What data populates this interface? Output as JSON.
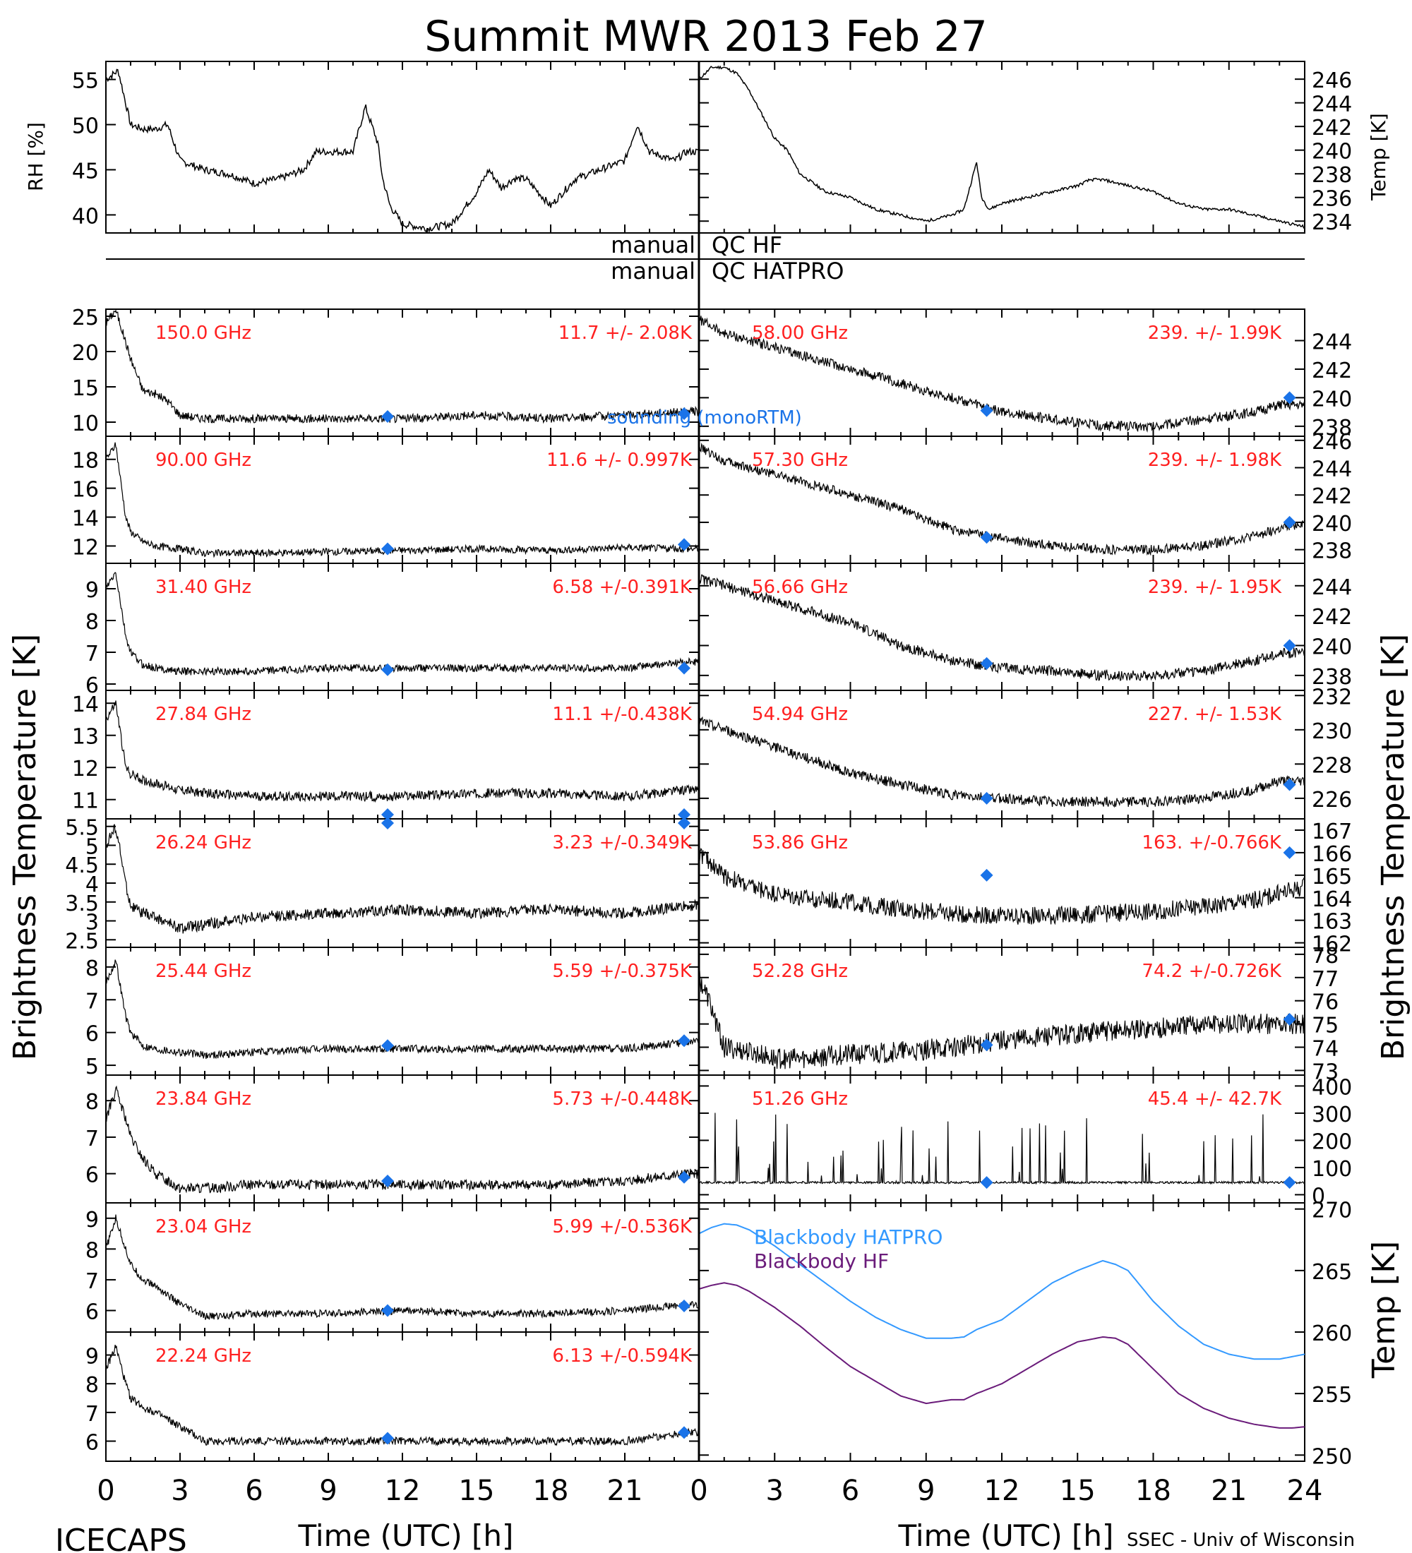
{
  "title": "Summit MWR 2013 Feb 27",
  "footer": {
    "left": "ICECAPS",
    "right": "SSEC - Univ of Wisconsin"
  },
  "labels": {
    "rh": "RH [%]",
    "temp": "Temp [K]",
    "brightness": "Brightness Temperature [K]",
    "qc_manual_1": "manual",
    "qc_hf": "QC HF",
    "qc_manual_2": "manual",
    "qc_hatpro": "QC HATPRO",
    "sounding": "sounding (monoRTM)",
    "time_axis": "Time (UTC) [h]"
  },
  "colors": {
    "trace": "#000000",
    "channel_text": "#ff2020",
    "sounding": "#1a73e8",
    "bb_hatpro": "#3399ff",
    "bb_hf": "#6a1b7a"
  },
  "chart_data": [
    {
      "type": "line",
      "id": "rh",
      "ylabel": "RH [%]",
      "ylim": [
        38,
        57
      ],
      "xlim": [
        0,
        24
      ],
      "yticks": [
        40,
        45,
        50,
        55
      ],
      "xticks": [
        0,
        3,
        6,
        9,
        12,
        15,
        18,
        21
      ],
      "series": [
        {
          "x": [
            0,
            0.5,
            1,
            1.5,
            2,
            2.5,
            3,
            3.5,
            4,
            5,
            6,
            7,
            8,
            8.5,
            9,
            10,
            10.5,
            11,
            11.2,
            11.5,
            12,
            13,
            14,
            15,
            15.5,
            16,
            16.5,
            17,
            18,
            19,
            20,
            21,
            21.5,
            22,
            23,
            23.5
          ],
          "y": [
            55,
            56,
            50,
            49.5,
            49.5,
            50,
            46,
            45.5,
            45,
            44.5,
            43.5,
            44,
            45,
            47,
            47,
            47,
            52,
            48,
            44,
            41,
            39,
            38.5,
            39,
            42.5,
            45,
            43,
            44,
            44,
            41,
            44,
            45,
            46,
            50,
            47,
            46,
            47
          ]
        }
      ]
    },
    {
      "type": "line",
      "id": "air_temp",
      "ylabel": "Temp [K]",
      "ylim": [
        233,
        247.5
      ],
      "xlim": [
        0,
        24
      ],
      "yticks": [
        234,
        236,
        238,
        240,
        242,
        244,
        246
      ],
      "series": [
        {
          "x": [
            0,
            0.5,
            1,
            1.5,
            2,
            2.5,
            3,
            3.5,
            4,
            5,
            6,
            7,
            8,
            9,
            10,
            10.5,
            11,
            11.2,
            11.5,
            12,
            13,
            14,
            15,
            15.5,
            16,
            17,
            18,
            19,
            20,
            21,
            22,
            23,
            24
          ],
          "y": [
            246,
            247,
            247,
            246.5,
            245,
            243,
            241,
            240,
            238,
            236.5,
            236,
            235,
            234.5,
            234,
            234.5,
            235,
            239,
            236,
            235,
            235.5,
            236,
            236.5,
            237,
            237.5,
            237.5,
            237,
            236.5,
            235.5,
            235,
            235,
            234.5,
            234,
            233.5
          ]
        }
      ]
    },
    {
      "type": "scatter",
      "id": "ch150",
      "label": "150.0 GHz",
      "stats": "11.7 +/-  2.08K",
      "side": "left",
      "ylim": [
        8,
        26
      ],
      "yticks": [
        10,
        15,
        20,
        25
      ],
      "x": [
        0,
        0.4,
        1,
        1.5,
        2,
        2.5,
        3,
        4,
        6,
        9,
        12,
        15,
        18,
        21,
        23.5,
        24
      ],
      "y": [
        24,
        26,
        19,
        14.5,
        14,
        13,
        11,
        10.5,
        10.5,
        10.5,
        10.5,
        11,
        10.5,
        11,
        11.5,
        11.5
      ],
      "noise": 0.6,
      "sounding": [
        {
          "x": 11.4,
          "y": 10.8
        },
        {
          "x": 23.4,
          "y": 11.2
        }
      ]
    },
    {
      "type": "scatter",
      "id": "ch58",
      "label": "58.00 GHz",
      "stats": "239. +/- 1.99K",
      "side": "right",
      "ylim": [
        237.3,
        246.2
      ],
      "yticks": [
        238,
        240,
        242,
        244
      ],
      "x": [
        0,
        1,
        2,
        3,
        4,
        6,
        8,
        10,
        12,
        14,
        16,
        18,
        20,
        22,
        23,
        24
      ],
      "y": [
        245.5,
        244.5,
        244,
        243.5,
        243,
        242,
        241,
        240,
        239,
        238.5,
        238,
        238,
        238.5,
        239,
        239.5,
        239.5
      ],
      "noise": 0.35,
      "sounding": [
        {
          "x": 11.4,
          "y": 239.1
        },
        {
          "x": 23.4,
          "y": 240.0
        }
      ]
    },
    {
      "type": "scatter",
      "id": "ch90",
      "label": "90.00 GHz",
      "stats": "11.6 +/- 0.997K",
      "side": "left",
      "ylim": [
        10.8,
        19.6
      ],
      "yticks": [
        12,
        14,
        16,
        18
      ],
      "x": [
        0,
        0.4,
        0.8,
        1,
        1.5,
        2,
        3,
        4,
        6,
        9,
        12,
        15,
        18,
        21,
        23.5,
        24
      ],
      "y": [
        18,
        19,
        14,
        13,
        12.3,
        12,
        11.8,
        11.5,
        11.5,
        11.6,
        11.7,
        11.8,
        11.7,
        11.9,
        11.8,
        11.8
      ],
      "noise": 0.25,
      "sounding": [
        {
          "x": 11.4,
          "y": 11.8
        },
        {
          "x": 23.4,
          "y": 12.1
        }
      ]
    },
    {
      "type": "scatter",
      "id": "ch57_3",
      "label": "57.30 GHz",
      "stats": "239. +/- 1.98K",
      "side": "right",
      "ylim": [
        237,
        246.3
      ],
      "yticks": [
        238,
        240,
        242,
        244,
        246
      ],
      "x": [
        0,
        1,
        2,
        3,
        4,
        6,
        8,
        10,
        12,
        14,
        16,
        18,
        20,
        22,
        23,
        24
      ],
      "y": [
        245.5,
        244.5,
        244,
        243.5,
        243,
        242,
        241,
        239.5,
        238.8,
        238.3,
        238,
        238,
        238.3,
        239,
        239.5,
        240
      ],
      "noise": 0.35,
      "sounding": [
        {
          "x": 11.4,
          "y": 238.9
        },
        {
          "x": 23.4,
          "y": 240.0
        }
      ]
    },
    {
      "type": "scatter",
      "id": "ch31",
      "label": "31.40 GHz",
      "stats": "6.58 +/-0.391K",
      "side": "left",
      "ylim": [
        5.8,
        9.8
      ],
      "yticks": [
        6,
        7,
        8,
        9
      ],
      "x": [
        0,
        0.4,
        0.8,
        1,
        1.5,
        2,
        3,
        4,
        6,
        9,
        12,
        15,
        18,
        21,
        23.5,
        24
      ],
      "y": [
        9,
        9.5,
        7.5,
        7,
        6.6,
        6.5,
        6.4,
        6.4,
        6.4,
        6.5,
        6.5,
        6.5,
        6.5,
        6.5,
        6.7,
        6.7
      ],
      "noise": 0.12,
      "sounding": [
        {
          "x": 11.4,
          "y": 6.45
        },
        {
          "x": 23.4,
          "y": 6.5
        }
      ]
    },
    {
      "type": "scatter",
      "id": "ch56_66",
      "label": "56.66 GHz",
      "stats": "239. +/- 1.95K",
      "side": "right",
      "ylim": [
        237,
        245.5
      ],
      "yticks": [
        238,
        240,
        242,
        244
      ],
      "x": [
        0,
        1,
        2,
        3,
        4,
        6,
        8,
        10,
        12,
        14,
        16,
        18,
        20,
        22,
        23,
        24
      ],
      "y": [
        244.5,
        244,
        243.5,
        243,
        242.5,
        241.5,
        240,
        239,
        238.5,
        238.3,
        238,
        238,
        238.3,
        239,
        239.5,
        239.5
      ],
      "noise": 0.35,
      "sounding": [
        {
          "x": 11.4,
          "y": 238.8
        },
        {
          "x": 23.4,
          "y": 240.0
        }
      ]
    },
    {
      "type": "scatter",
      "id": "ch27_84",
      "label": "27.84 GHz",
      "stats": "11.1 +/-0.438K",
      "side": "left",
      "ylim": [
        10.4,
        14.4
      ],
      "yticks": [
        11,
        12,
        13,
        14
      ],
      "x": [
        0,
        0.4,
        0.8,
        1,
        1.5,
        2,
        3,
        4,
        6,
        9,
        12,
        15,
        18,
        21,
        23.5,
        24
      ],
      "y": [
        13.5,
        14,
        12,
        11.8,
        11.6,
        11.5,
        11.3,
        11.2,
        11.1,
        11.1,
        11.1,
        11.2,
        11.2,
        11.1,
        11.3,
        11.3
      ],
      "noise": 0.15,
      "sounding": [
        {
          "x": 11.4,
          "y": 10.4
        },
        {
          "x": 23.4,
          "y": 10.4
        }
      ]
    },
    {
      "type": "scatter",
      "id": "ch54_94",
      "label": "54.94 GHz",
      "stats": "227. +/- 1.53K",
      "side": "right",
      "ylim": [
        224.8,
        232.3
      ],
      "yticks": [
        226,
        228,
        230,
        232
      ],
      "x": [
        0,
        1,
        2,
        3,
        4,
        6,
        8,
        10,
        12,
        14,
        16,
        18,
        20,
        22,
        23,
        24
      ],
      "y": [
        230.5,
        230,
        229.5,
        229,
        228.5,
        227.5,
        226.8,
        226.2,
        226,
        225.8,
        225.8,
        225.8,
        226,
        226.5,
        227,
        227
      ],
      "noise": 0.3,
      "sounding": [
        {
          "x": 11.4,
          "y": 226.0
        },
        {
          "x": 23.4,
          "y": 226.8
        }
      ]
    },
    {
      "type": "scatter",
      "id": "ch26_24",
      "label": "26.24 GHz",
      "stats": "3.23 +/-0.349K",
      "side": "left",
      "ylim": [
        2.3,
        5.7
      ],
      "yticks": [
        2.5,
        3.0,
        3.5,
        4.0,
        4.5,
        5.0,
        5.5
      ],
      "x": [
        0,
        0.4,
        0.8,
        1,
        1.5,
        2,
        3,
        4,
        6,
        9,
        12,
        15,
        18,
        21,
        23.5,
        24
      ],
      "y": [
        5,
        5.5,
        4,
        3.4,
        3.2,
        3.1,
        2.8,
        2.9,
        3.1,
        3.2,
        3.3,
        3.2,
        3.3,
        3.2,
        3.4,
        3.4
      ],
      "noise": 0.15,
      "sounding": [
        {
          "x": 11.4,
          "y": 5.6
        },
        {
          "x": 23.4,
          "y": 5.7
        }
      ]
    },
    {
      "type": "scatter",
      "id": "ch53_86",
      "label": "53.86 GHz",
      "stats": "163. +/-0.766K",
      "side": "right",
      "ylim": [
        161.8,
        167.5
      ],
      "yticks": [
        162,
        163,
        164,
        165,
        166,
        167
      ],
      "x": [
        0,
        1,
        2,
        3,
        4,
        6,
        8,
        10,
        12,
        14,
        16,
        18,
        20,
        22,
        23,
        24
      ],
      "y": [
        166,
        165,
        164.5,
        164.2,
        164,
        163.8,
        163.5,
        163.3,
        163.2,
        163.2,
        163.3,
        163.4,
        163.6,
        163.9,
        164.2,
        164.5
      ],
      "noise": 0.4,
      "sounding": [
        {
          "x": 11.4,
          "y": 165.0
        },
        {
          "x": 23.4,
          "y": 166.0
        }
      ]
    },
    {
      "type": "scatter",
      "id": "ch25_44",
      "label": "25.44 GHz",
      "stats": "5.59 +/-0.375K",
      "side": "left",
      "ylim": [
        4.7,
        8.6
      ],
      "yticks": [
        5,
        6,
        7,
        8
      ],
      "x": [
        0,
        0.4,
        0.8,
        1,
        1.5,
        2,
        3,
        4,
        6,
        9,
        12,
        15,
        18,
        21,
        23.5,
        24
      ],
      "y": [
        7.5,
        8.2,
        6.5,
        6,
        5.6,
        5.5,
        5.4,
        5.3,
        5.4,
        5.5,
        5.5,
        5.5,
        5.5,
        5.5,
        5.7,
        5.7
      ],
      "noise": 0.12,
      "sounding": [
        {
          "x": 11.4,
          "y": 5.6
        },
        {
          "x": 23.4,
          "y": 5.75
        }
      ]
    },
    {
      "type": "scatter",
      "id": "ch52_28",
      "label": "52.28 GHz",
      "stats": "74.2 +/-0.726K",
      "side": "right",
      "ylim": [
        72.8,
        78.3
      ],
      "yticks": [
        73,
        74,
        75,
        76,
        77,
        78
      ],
      "x": [
        0,
        0.4,
        1,
        2,
        3,
        4,
        6,
        8,
        10,
        12,
        14,
        16,
        18,
        20,
        22,
        24
      ],
      "y": [
        77,
        76,
        74,
        73.8,
        73.5,
        73.5,
        73.7,
        73.8,
        74,
        74.3,
        74.5,
        74.7,
        74.8,
        75,
        75,
        75
      ],
      "noise": 0.45,
      "sounding": [
        {
          "x": 11.4,
          "y": 74.1
        },
        {
          "x": 23.4,
          "y": 75.2
        }
      ]
    },
    {
      "type": "scatter",
      "id": "ch23_84",
      "label": "23.84 GHz",
      "stats": "5.73 +/-0.448K",
      "side": "left",
      "ylim": [
        5.2,
        8.7
      ],
      "yticks": [
        6,
        7,
        8
      ],
      "x": [
        0,
        0.4,
        0.8,
        1,
        1.5,
        2,
        3,
        4,
        6,
        9,
        12,
        15,
        18,
        21,
        23.5,
        24
      ],
      "y": [
        7.5,
        8.3,
        7.5,
        7,
        6.4,
        6,
        5.6,
        5.6,
        5.7,
        5.7,
        5.7,
        5.7,
        5.7,
        5.8,
        6,
        6
      ],
      "noise": 0.14,
      "sounding": [
        {
          "x": 11.4,
          "y": 5.8
        },
        {
          "x": 23.4,
          "y": 5.9
        }
      ]
    },
    {
      "type": "scatter",
      "id": "ch51_26",
      "label": "51.26 GHz",
      "stats": "45.4 +/- 42.7K",
      "side": "right",
      "ylim": [
        -30,
        440
      ],
      "yticks": [
        0,
        100,
        200,
        300,
        400
      ],
      "x": [
        0,
        24
      ],
      "y": [
        45,
        45
      ],
      "noise": 4,
      "spikes": true,
      "sounding": [
        {
          "x": 11.4,
          "y": 45
        },
        {
          "x": 23.4,
          "y": 45
        }
      ]
    },
    {
      "type": "scatter",
      "id": "ch23_04",
      "label": "23.04 GHz",
      "stats": "5.99 +/-0.536K",
      "side": "left",
      "ylim": [
        5.3,
        9.5
      ],
      "yticks": [
        6,
        7,
        8,
        9
      ],
      "x": [
        0,
        0.4,
        0.8,
        1,
        1.5,
        2,
        3,
        4,
        6,
        9,
        12,
        15,
        18,
        21,
        23.5,
        24
      ],
      "y": [
        8,
        9,
        8,
        7.5,
        7,
        6.8,
        6.2,
        5.8,
        5.9,
        5.9,
        6,
        5.9,
        5.9,
        6,
        6.2,
        6.2
      ],
      "noise": 0.12,
      "sounding": [
        {
          "x": 11.4,
          "y": 6.0
        },
        {
          "x": 23.4,
          "y": 6.15
        }
      ]
    },
    {
      "type": "line",
      "id": "blackbody",
      "ylabel": "Temp [K]",
      "side": "right",
      "ylim": [
        249.5,
        270.5
      ],
      "yticks": [
        250,
        255,
        260,
        265,
        270
      ],
      "series": [
        {
          "name": "Blackbody HATPRO",
          "x": [
            0,
            0.5,
            1,
            1.5,
            2,
            3,
            4,
            5,
            6,
            7,
            8,
            9,
            10,
            10.5,
            11,
            12,
            13,
            14,
            15,
            16,
            16.5,
            17,
            18,
            19,
            20,
            21,
            22,
            23,
            23.5,
            24
          ],
          "y": [
            268,
            268.5,
            268.8,
            268.7,
            268.3,
            267,
            265.5,
            264,
            262.5,
            261.2,
            260.2,
            259.5,
            259.5,
            259.6,
            260.2,
            261,
            262.5,
            264,
            265,
            265.8,
            265.5,
            265,
            262.5,
            260.5,
            259,
            258.2,
            257.8,
            257.8,
            258,
            258.2
          ]
        },
        {
          "name": "Blackbody HF",
          "x": [
            0,
            0.5,
            1,
            1.5,
            2,
            3,
            4,
            5,
            6,
            7,
            8,
            9,
            10,
            10.5,
            11,
            12,
            13,
            14,
            15,
            16,
            16.5,
            17,
            18,
            19,
            20,
            21,
            22,
            23,
            23.5,
            24
          ],
          "y": [
            263.5,
            263.8,
            264,
            263.8,
            263.3,
            262,
            260.5,
            258.8,
            257.2,
            256,
            254.8,
            254.2,
            254.5,
            254.5,
            255,
            255.8,
            257,
            258.2,
            259.2,
            259.6,
            259.5,
            259,
            257,
            255,
            253.8,
            253,
            252.5,
            252.2,
            252.2,
            252.3
          ]
        }
      ]
    }
  ]
}
